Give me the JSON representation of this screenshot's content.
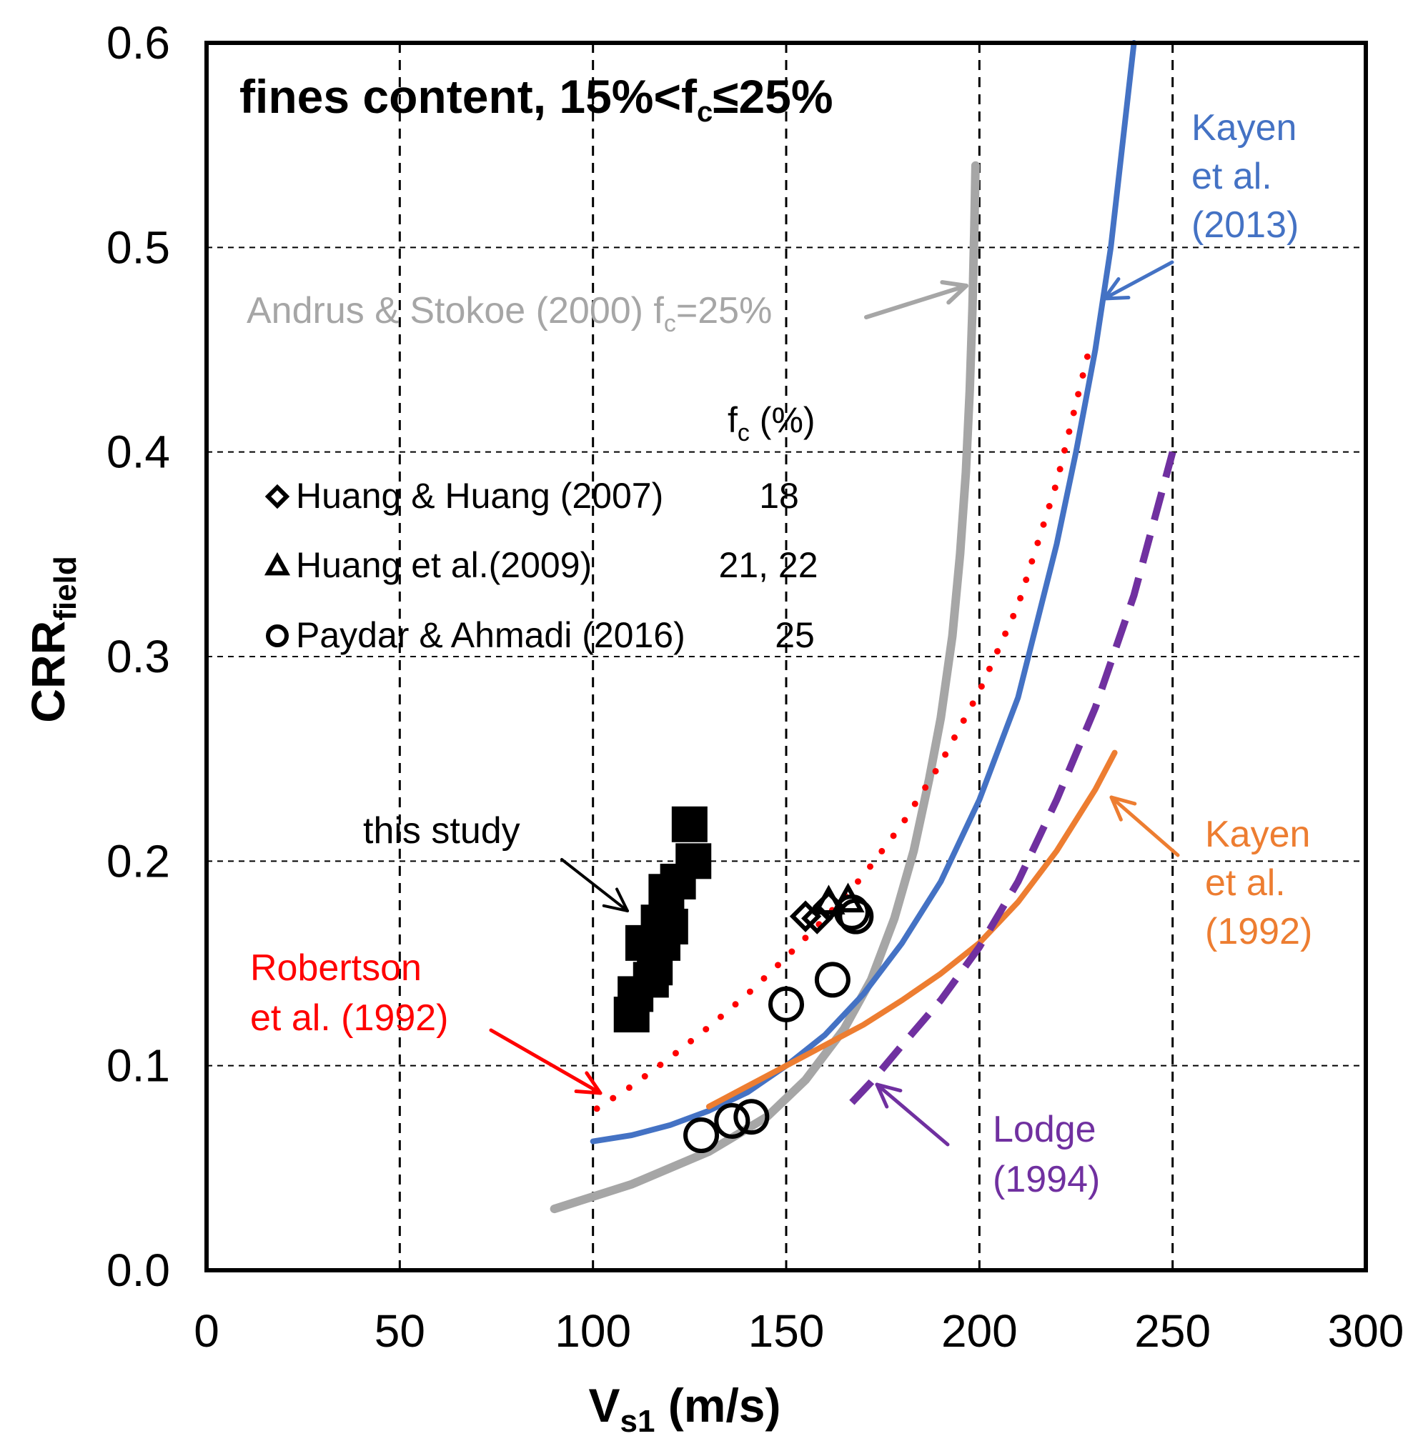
{
  "chart_data": {
    "type": "scatter",
    "title": "fines content, 15%<f",
    "title_sub": "c",
    "title_suffix": "≤25%",
    "xlabel": "V",
    "xlabel_sub": "s1",
    "xlabel_units": " (m/s)",
    "ylabel": "CRR",
    "ylabel_sub": "field",
    "xlim": [
      0,
      300
    ],
    "ylim": [
      0,
      0.6
    ],
    "x_ticks": [
      0,
      50,
      100,
      150,
      200,
      250,
      300
    ],
    "x_tick_labels": [
      "0",
      "50",
      "100",
      "150",
      "200",
      "250",
      "300"
    ],
    "y_ticks": [
      0,
      0.1,
      0.2,
      0.3,
      0.4,
      0.5,
      0.6
    ],
    "y_tick_labels": [
      "0.0",
      "0.1",
      "0.2",
      "0.3",
      "0.4",
      "0.5",
      "0.6"
    ],
    "grid": true,
    "series": [
      {
        "name": "Andrus & Stokoe (2000) fc=25%",
        "kind": "line",
        "style": "solid",
        "color": "#a6a6a6",
        "x": [
          90,
          110,
          130,
          145,
          155,
          165,
          172,
          178,
          183,
          187,
          190,
          193,
          195,
          196.5,
          197.5,
          198.2,
          198.7,
          199
        ],
        "y": [
          0.03,
          0.042,
          0.058,
          0.075,
          0.093,
          0.118,
          0.142,
          0.172,
          0.205,
          0.24,
          0.27,
          0.31,
          0.35,
          0.39,
          0.43,
          0.47,
          0.51,
          0.54
        ]
      },
      {
        "name": "Kayen et al. (2013)",
        "kind": "line",
        "style": "solid",
        "color": "#4472c4",
        "x": [
          100,
          110,
          120,
          130,
          140,
          150,
          160,
          170,
          180,
          190,
          200,
          210,
          220,
          225,
          230,
          234,
          237,
          240
        ],
        "y": [
          0.063,
          0.066,
          0.071,
          0.078,
          0.087,
          0.1,
          0.115,
          0.135,
          0.16,
          0.19,
          0.23,
          0.28,
          0.355,
          0.4,
          0.45,
          0.5,
          0.55,
          0.6
        ]
      },
      {
        "name": "Robertson et al. (1992)",
        "kind": "line",
        "style": "dotted",
        "color": "#ff0000",
        "x": [
          101,
          110,
          120,
          130,
          140,
          150,
          160,
          170,
          180,
          190,
          200,
          210,
          220,
          228
        ],
        "y": [
          0.079,
          0.09,
          0.104,
          0.119,
          0.135,
          0.153,
          0.172,
          0.193,
          0.218,
          0.248,
          0.283,
          0.325,
          0.385,
          0.447
        ]
      },
      {
        "name": "Kayen et al. (1992)",
        "kind": "line",
        "style": "solid",
        "color": "#ed7d31",
        "x": [
          130,
          140,
          150,
          160,
          170,
          180,
          190,
          200,
          210,
          220,
          230,
          235
        ],
        "y": [
          0.08,
          0.09,
          0.1,
          0.11,
          0.12,
          0.132,
          0.145,
          0.16,
          0.18,
          0.205,
          0.235,
          0.253
        ]
      },
      {
        "name": "Lodge (1994)",
        "kind": "line",
        "style": "dashed",
        "color": "#7030a0",
        "x": [
          167,
          172,
          180,
          190,
          200,
          210,
          220,
          230,
          240,
          250
        ],
        "y": [
          0.082,
          0.092,
          0.11,
          0.132,
          0.158,
          0.19,
          0.23,
          0.275,
          0.33,
          0.4
        ]
      },
      {
        "name": "this study",
        "kind": "points",
        "marker": "filled-square",
        "color": "#000000",
        "x": [
          110,
          111,
          113,
          115,
          116,
          117,
          118,
          119,
          120,
          122,
          125,
          126
        ],
        "y": [
          0.125,
          0.135,
          0.16,
          0.142,
          0.148,
          0.17,
          0.16,
          0.185,
          0.168,
          0.19,
          0.218,
          0.2
        ]
      },
      {
        "name": "Huang & Huang (2007)",
        "kind": "points",
        "marker": "diamond",
        "color": "#000000",
        "x": [
          155,
          158,
          161
        ],
        "y": [
          0.173,
          0.172,
          0.178
        ]
      },
      {
        "name": "Huang et al.(2009)",
        "kind": "points",
        "marker": "triangle",
        "color": "#000000",
        "x": [
          161,
          166
        ],
        "y": [
          0.18,
          0.181
        ]
      },
      {
        "name": "Paydar & Ahmadi (2016)",
        "kind": "points",
        "marker": "circle",
        "color": "#000000",
        "x": [
          128,
          136,
          141,
          150,
          162,
          167,
          168
        ],
        "y": [
          0.066,
          0.073,
          0.075,
          0.13,
          0.142,
          0.175,
          0.173
        ]
      }
    ],
    "legend": {
      "header": "f",
      "header_sub": "c",
      "header_units": " (%)",
      "entries": [
        {
          "marker": "diamond",
          "label": "Huang & Huang (2007)",
          "fc": "18"
        },
        {
          "marker": "triangle",
          "label": "Huang et al.(2009)",
          "fc": "21, 22"
        },
        {
          "marker": "circle",
          "label": "Paydar & Ahmadi (2016)",
          "fc": "25"
        }
      ]
    },
    "annotations": [
      {
        "id": "andrus",
        "color": "#a6a6a6",
        "text": "Andrus  & Stokoe (2000) f",
        "sub": "c",
        "suffix": "=25%"
      },
      {
        "id": "kayen2013",
        "color": "#4472c4",
        "lines": [
          "Kayen",
          "et al.",
          "(2013)"
        ]
      },
      {
        "id": "kayen1992",
        "color": "#ed7d31",
        "lines": [
          "Kayen",
          "et al.",
          "(1992)"
        ]
      },
      {
        "id": "robertson",
        "color": "#ff0000",
        "lines": [
          "Robertson",
          "et al. (1992)"
        ]
      },
      {
        "id": "lodge",
        "color": "#7030a0",
        "lines": [
          "Lodge",
          "(1994)"
        ]
      },
      {
        "id": "thisstudy",
        "color": "#000000",
        "lines": [
          "this study"
        ]
      }
    ]
  }
}
